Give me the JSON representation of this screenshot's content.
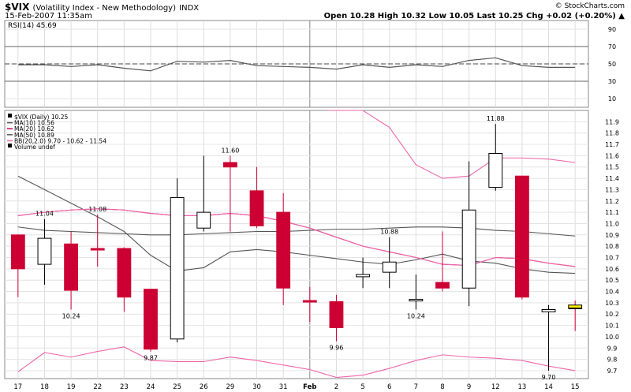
{
  "header": {
    "symbol": "$VIX",
    "name": "(Volatility Index - New Methodology)",
    "exchange": "INDX",
    "date": "15-Feb-2007 11:35am",
    "copyright": "© StockCharts.com",
    "quote": "Open 10.28  High 10.32  Low 10.05  Last 10.25  Chg +0.02 (+0.20%) ▲"
  },
  "rsi_panel": {
    "label": "RSI(14) 45.69",
    "ticks": [
      "90",
      "70",
      "50",
      "30",
      "10"
    ]
  },
  "price_panel": {
    "legend": [
      {
        "text": "$VIX (Daily) 10.25",
        "color": "#000000",
        "marker": "candle"
      },
      {
        "text": "MA(10) 10.56",
        "color": "#555555",
        "marker": "line"
      },
      {
        "text": "MA(20) 10.62",
        "color": "#cc0066",
        "marker": "line"
      },
      {
        "text": "MA(50) 10.89",
        "color": "#555555",
        "marker": "line"
      },
      {
        "text": "BB(20,2.0) 9.70 - 10.62 - 11.54",
        "color": "#ee66aa",
        "marker": "line"
      },
      {
        "text": "Volume undef",
        "color": "#000000",
        "marker": "bars"
      }
    ],
    "ticks": [
      "11.9",
      "11.8",
      "11.7",
      "11.6",
      "11.5",
      "11.4",
      "11.3",
      "11.2",
      "11.1",
      "11.0",
      "10.9",
      "10.8",
      "10.7",
      "10.6",
      "10.5",
      "10.4",
      "10.3",
      "10.2",
      "10.1",
      "10.0",
      "9.9",
      "9.8",
      "9.7"
    ]
  },
  "x_labels": [
    "17",
    "18",
    "19",
    "22",
    "23",
    "24",
    "25",
    "26",
    "29",
    "30",
    "31",
    "Feb",
    "2",
    "5",
    "6",
    "7",
    "8",
    "9",
    "12",
    "13",
    "14",
    "15"
  ],
  "colors": {
    "up_fill": "#ffffff",
    "down_fill": "#cc0033",
    "last_fill": "#ffee00",
    "ma10": "#555555",
    "ma20": "#cc0066",
    "ma50": "#555555",
    "bb": "#ee66aa",
    "rsi": "#555555"
  },
  "chart_data": {
    "type": "candlestick",
    "title": "$VIX (Volatility Index - New Methodology) INDX",
    "categories": [
      "17",
      "18",
      "19",
      "22",
      "23",
      "24",
      "25",
      "26",
      "29",
      "30",
      "31",
      "Feb",
      "2",
      "5",
      "6",
      "7",
      "8",
      "9",
      "12",
      "13",
      "14",
      "15"
    ],
    "candles": [
      {
        "o": 10.9,
        "h": 10.9,
        "l": 10.35,
        "c": 10.6
      },
      {
        "o": 10.64,
        "h": 11.04,
        "l": 10.46,
        "c": 10.87
      },
      {
        "o": 10.82,
        "h": 10.93,
        "l": 10.24,
        "c": 10.41
      },
      {
        "o": 10.78,
        "h": 11.08,
        "l": 10.62,
        "c": 10.77
      },
      {
        "o": 10.78,
        "h": 10.79,
        "l": 10.22,
        "c": 10.35
      },
      {
        "o": 10.42,
        "h": 10.42,
        "l": 9.87,
        "c": 9.89
      },
      {
        "o": 9.98,
        "h": 11.4,
        "l": 9.95,
        "c": 11.23
      },
      {
        "o": 10.96,
        "h": 11.6,
        "l": 10.93,
        "c": 11.1
      },
      {
        "o": 11.54,
        "h": 11.6,
        "l": 10.93,
        "c": 11.5
      },
      {
        "o": 11.29,
        "h": 11.5,
        "l": 10.96,
        "c": 10.98
      },
      {
        "o": 11.1,
        "h": 11.27,
        "l": 10.28,
        "c": 10.43
      },
      {
        "o": 10.32,
        "h": 10.44,
        "l": 10.13,
        "c": 10.31
      },
      {
        "o": 10.31,
        "h": 10.37,
        "l": 9.96,
        "c": 10.08
      },
      {
        "o": 10.53,
        "h": 10.7,
        "l": 10.43,
        "c": 10.55
      },
      {
        "o": 10.57,
        "h": 10.88,
        "l": 10.43,
        "c": 10.66
      },
      {
        "o": 10.32,
        "h": 10.55,
        "l": 10.24,
        "c": 10.33
      },
      {
        "o": 10.48,
        "h": 10.93,
        "l": 10.4,
        "c": 10.43
      },
      {
        "o": 10.43,
        "h": 11.55,
        "l": 10.27,
        "c": 11.12
      },
      {
        "o": 11.32,
        "h": 11.88,
        "l": 11.29,
        "c": 11.62
      },
      {
        "o": 11.42,
        "h": 11.42,
        "l": 10.33,
        "c": 10.35
      },
      {
        "o": 10.22,
        "h": 10.28,
        "l": 9.7,
        "c": 10.24
      },
      {
        "o": 10.28,
        "h": 10.32,
        "l": 10.05,
        "c": 10.25
      }
    ],
    "annotations": [
      {
        "index": 1,
        "value": 11.04,
        "label": "11.04",
        "pos": "above"
      },
      {
        "index": 2,
        "value": 10.24,
        "label": "10.24",
        "pos": "below"
      },
      {
        "index": 3,
        "value": 11.08,
        "label": "11.08",
        "pos": "above"
      },
      {
        "index": 5,
        "value": 9.87,
        "label": "9.87",
        "pos": "below"
      },
      {
        "index": 8,
        "value": 11.6,
        "label": "11.60",
        "pos": "above"
      },
      {
        "index": 12,
        "value": 9.96,
        "label": "9.96",
        "pos": "below"
      },
      {
        "index": 14,
        "value": 10.88,
        "label": "10.88",
        "pos": "above"
      },
      {
        "index": 15,
        "value": 10.24,
        "label": "10.24",
        "pos": "below"
      },
      {
        "index": 18,
        "value": 11.88,
        "label": "11.88",
        "pos": "above"
      },
      {
        "index": 20,
        "value": 9.7,
        "label": "9.70",
        "pos": "below"
      }
    ],
    "overlays": [
      {
        "name": "MA(10)",
        "key": "ma10",
        "values": [
          11.42,
          11.3,
          11.18,
          11.06,
          10.93,
          10.72,
          10.58,
          10.61,
          10.75,
          10.77,
          10.75,
          10.72,
          10.69,
          10.66,
          10.64,
          10.68,
          10.73,
          10.67,
          10.65,
          10.6,
          10.57,
          10.56
        ]
      },
      {
        "name": "MA(50)",
        "key": "ma50",
        "values": [
          10.97,
          10.94,
          10.93,
          10.92,
          10.91,
          10.9,
          10.9,
          10.91,
          10.92,
          10.93,
          10.93,
          10.94,
          10.95,
          10.95,
          10.96,
          10.97,
          10.97,
          10.96,
          10.94,
          10.93,
          10.91,
          10.89
        ]
      },
      {
        "name": "MA(20)",
        "key": "ma20",
        "values": [
          11.07,
          11.1,
          11.12,
          11.13,
          11.12,
          11.09,
          11.07,
          11.07,
          11.09,
          11.07,
          11.02,
          10.96,
          10.88,
          10.8,
          10.75,
          10.7,
          10.64,
          10.63,
          10.7,
          10.69,
          10.65,
          10.62
        ]
      },
      {
        "name": "BB upper",
        "key": "bb",
        "values": [
          null,
          null,
          null,
          null,
          null,
          null,
          null,
          null,
          null,
          null,
          null,
          null,
          12.2,
          12.05,
          11.85,
          11.52,
          11.4,
          11.42,
          11.58,
          11.58,
          11.57,
          11.54
        ]
      },
      {
        "name": "BB middle",
        "key": "bb",
        "values": [
          11.07,
          11.1,
          11.12,
          11.13,
          11.12,
          11.09,
          11.07,
          11.07,
          11.09,
          11.07,
          11.02,
          10.96,
          10.88,
          10.8,
          10.75,
          10.7,
          10.64,
          10.63,
          10.7,
          10.69,
          10.65,
          10.62
        ]
      },
      {
        "name": "BB lower",
        "key": "bb",
        "values": [
          9.69,
          9.86,
          9.82,
          9.87,
          9.91,
          9.79,
          9.78,
          9.78,
          9.82,
          9.79,
          9.75,
          9.71,
          9.64,
          9.66,
          9.72,
          9.79,
          9.84,
          9.82,
          9.81,
          9.79,
          9.74,
          9.7
        ]
      }
    ],
    "rsi": {
      "name": "RSI(14)",
      "ylim": [
        0,
        100
      ],
      "values": [
        49,
        49,
        47,
        49,
        45,
        42,
        53,
        52,
        54,
        48,
        47,
        46,
        44,
        49,
        46,
        49,
        47,
        54,
        57,
        48,
        46,
        46
      ]
    },
    "ylim": [
      9.63,
      12.0
    ]
  }
}
